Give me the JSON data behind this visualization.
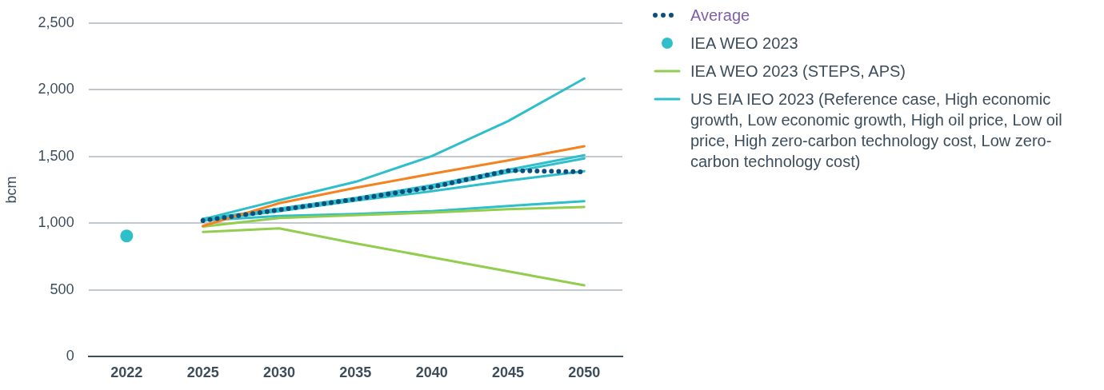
{
  "chart_data": {
    "type": "line",
    "ylabel": "bcm",
    "categories": [
      "2022",
      "2025",
      "2030",
      "2035",
      "2040",
      "2045",
      "2050"
    ],
    "ylim": [
      0,
      2500
    ],
    "yticks": [
      0,
      500,
      {
        "value": 1000,
        "label": "1,000"
      },
      {
        "value": 1500,
        "label": "1,500"
      },
      {
        "value": 2000,
        "label": "2,000"
      },
      {
        "value": 2500,
        "label": "2,500"
      }
    ],
    "grid": "y",
    "legend": "right",
    "marker": "none",
    "series": [
      {
        "name": "Average",
        "color": "#0d4f7c",
        "line_style": "dotted",
        "values": [
          null,
          1020,
          1100,
          1180,
          1270,
          1395,
          1385
        ]
      },
      {
        "name": "IEA WEO 2023",
        "type": "scatter",
        "marker": "circle",
        "color": "#2ebfcb",
        "values": [
          905,
          null,
          null,
          null,
          null,
          null,
          null
        ]
      },
      {
        "color": "#f5821f",
        "values": [
          null,
          980,
          1150,
          1265,
          1370,
          1470,
          1577
        ]
      },
      {
        "name": "IEA WEO 2023 (STEPS, APS)",
        "color": "#92cd4f",
        "values": [
          null,
          975,
          1040,
          1060,
          1080,
          1105,
          1122
        ]
      },
      {
        "color": "#92cd4f",
        "values": [
          null,
          935,
          962,
          850,
          745,
          640,
          535
        ]
      },
      {
        "name": "US EIA IEO 2023 (Reference case, High economic growth, Low economic growth, High oil price, Low oil price, High zero-carbon technology cost, Low zero-carbon technology cost)",
        "color": "#2ebfcb",
        "values": [
          null,
          1030,
          1173,
          1310,
          1503,
          1765,
          2084
        ]
      },
      {
        "color": "#2ebfcb",
        "values": [
          null,
          1035,
          1100,
          1180,
          1265,
          1380,
          1485
        ]
      },
      {
        "color": "#2ebfcb",
        "values": [
          null,
          1030,
          1110,
          1190,
          1285,
          1400,
          1510
        ]
      },
      {
        "color": "#2ebfcb",
        "values": [
          null,
          1020,
          1090,
          1170,
          1240,
          1320,
          1390
        ]
      },
      {
        "color": "#2ebfcb",
        "values": [
          null,
          1020,
          1055,
          1070,
          1090,
          1130,
          1165
        ]
      }
    ]
  }
}
